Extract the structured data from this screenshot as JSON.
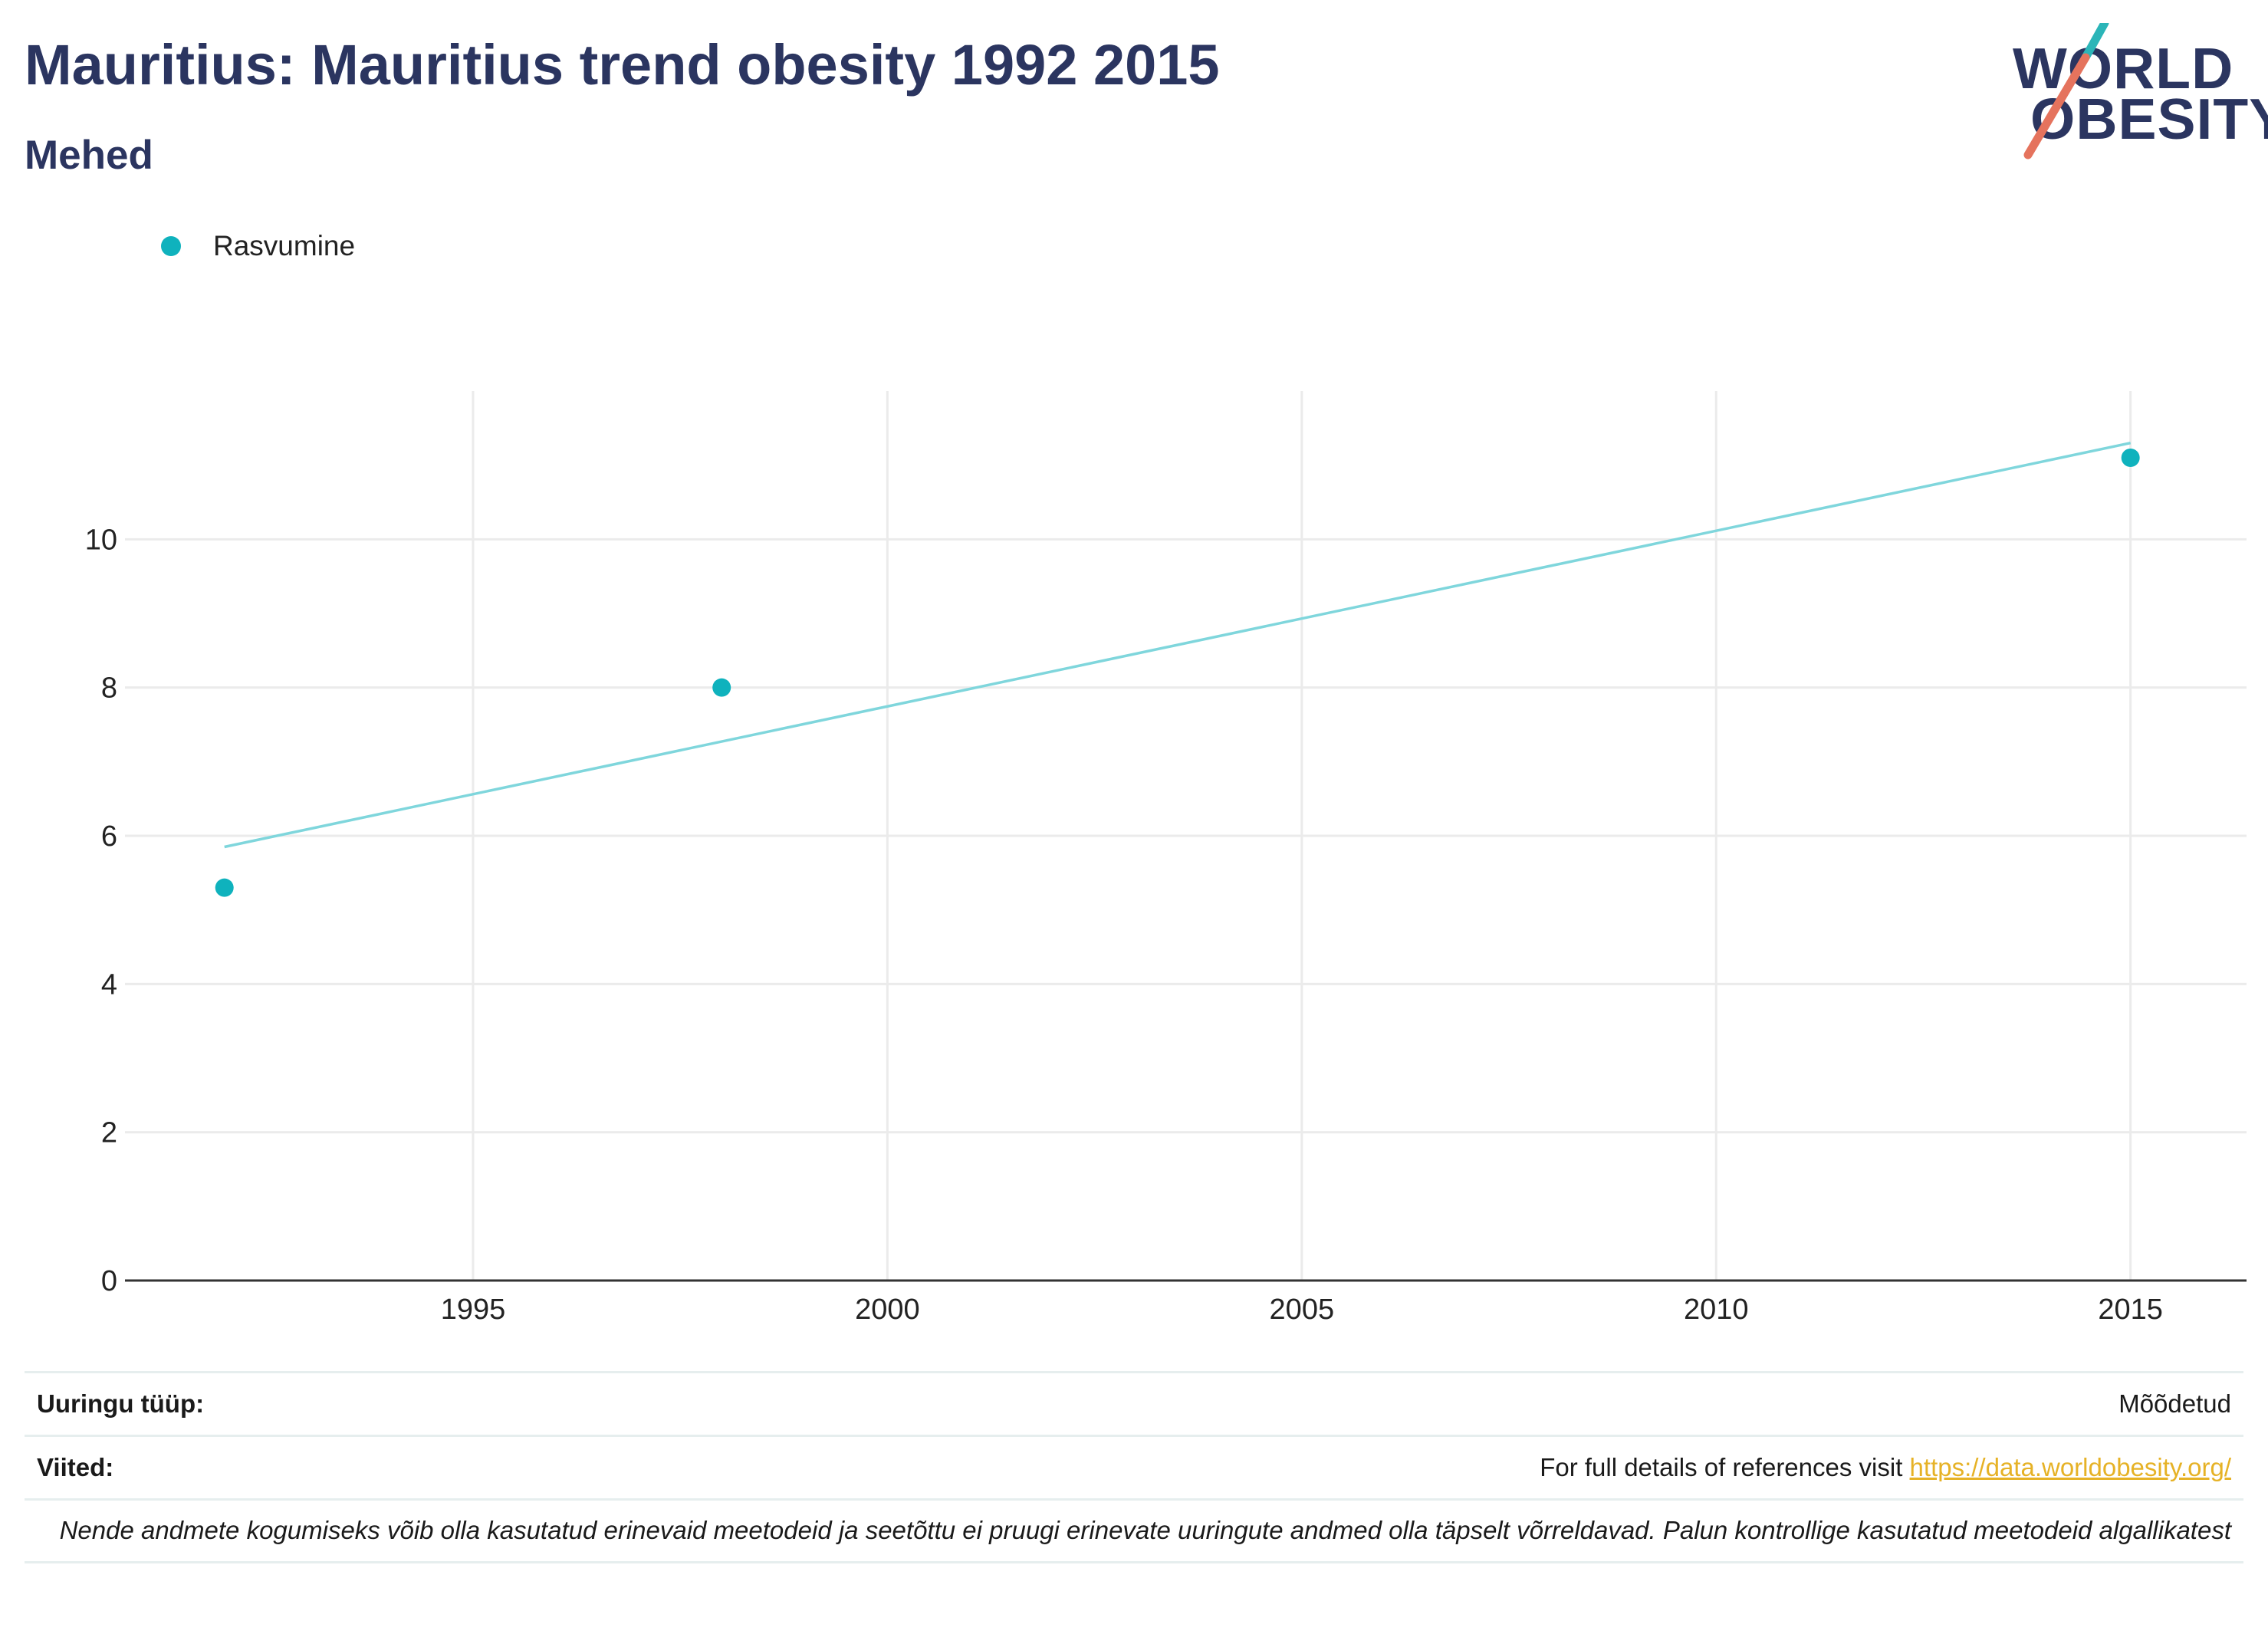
{
  "header": {
    "title": "Mauritius: Mauritius trend obesity 1992 2015",
    "subtitle": "Mehed"
  },
  "logo": {
    "line1": "WORLD",
    "line2": "OBESITY",
    "colors": {
      "text": "#2b3560",
      "slash_top": "#2bb5b8",
      "slash_bottom": "#e5735d"
    }
  },
  "legend": {
    "items": [
      {
        "label": "Rasvumine",
        "color": "#0fb2bd"
      }
    ]
  },
  "chart_data": {
    "type": "scatter",
    "title": "",
    "xlabel": "",
    "ylabel": "",
    "xlim": [
      1990.8,
      2016.4
    ],
    "ylim": [
      0,
      12
    ],
    "x_ticks": [
      1995,
      2000,
      2005,
      2010,
      2015
    ],
    "y_ticks": [
      0,
      2,
      4,
      6,
      8,
      10
    ],
    "grid": true,
    "legend_position": "top-left",
    "series": [
      {
        "name": "Rasvumine",
        "color": "#0fb2bd",
        "points": [
          {
            "x": 1992,
            "y": 5.3
          },
          {
            "x": 1998,
            "y": 8.0
          },
          {
            "x": 2015,
            "y": 11.1
          }
        ]
      }
    ],
    "trendline": {
      "color": "#7fd6dc",
      "points": [
        {
          "x": 1992,
          "y": 5.85
        },
        {
          "x": 2015,
          "y": 11.3
        }
      ]
    }
  },
  "info": {
    "survey_type_label": "Uuringu tüüp:",
    "survey_type_value": "Mõõdetud",
    "references_label": "Viited:",
    "references_text": "For full details of references visit ",
    "references_link": "https://data.worldobesity.org/",
    "note": "Nende andmete kogumiseks võib olla kasutatud erinevaid meetodeid ja seetõttu ei pruugi erinevate uuringute andmed olla täpselt võrreldavad. Palun kontrollige kasutatud meetodeid algallikatest"
  }
}
